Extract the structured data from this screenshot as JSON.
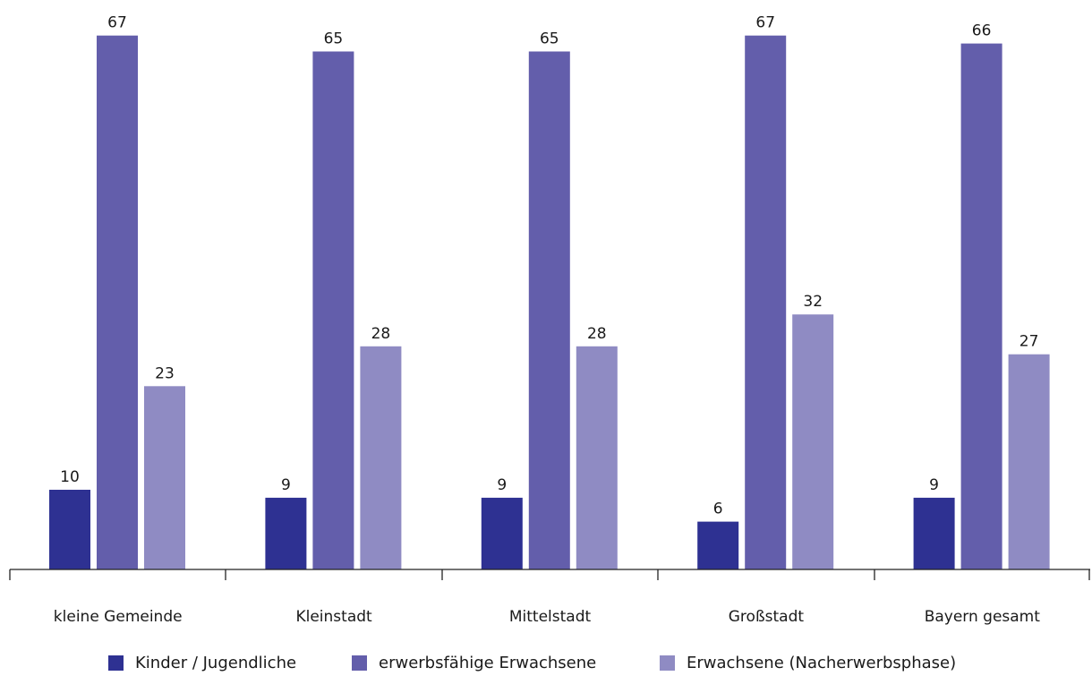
{
  "chart_data": {
    "type": "bar",
    "categories": [
      "kleine Gemeinde",
      "Kleinstadt",
      "Mittelstadt",
      "Großstadt",
      "Bayern gesamt"
    ],
    "series": [
      {
        "name": "Kinder / Jugendliche",
        "color": "#2e3192",
        "values": [
          10,
          9,
          9,
          6,
          9
        ]
      },
      {
        "name": "erwerbsfähige Erwachsene",
        "color": "#635eab",
        "values": [
          67,
          65,
          65,
          67,
          66
        ]
      },
      {
        "name": "Erwachsene (Nacherwerbsphase)",
        "color": "#8f8bc3",
        "values": [
          23,
          28,
          28,
          32,
          27
        ]
      }
    ],
    "title": "",
    "xlabel": "",
    "ylabel": "",
    "ylim": [
      0,
      73
    ],
    "grid": false,
    "legend_position": "bottom"
  }
}
